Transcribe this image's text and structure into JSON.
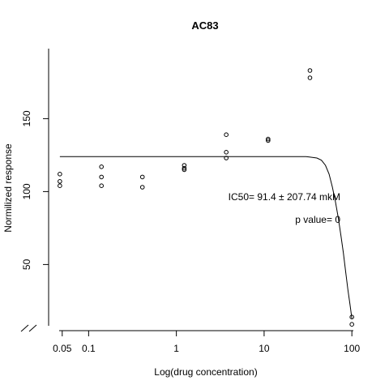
{
  "chart_data": {
    "type": "scatter",
    "title": "AC83",
    "xlabel": "Log(drug concentration)",
    "ylabel": "Normilized response",
    "x_scale": "log",
    "x_ticks": [
      0.05,
      0.1,
      1,
      10,
      100
    ],
    "x_tick_labels": [
      "0.05",
      "0.1",
      "1",
      "10",
      "100"
    ],
    "y_ticks": [
      50,
      100,
      150
    ],
    "y_tick_labels": [
      "50",
      "100",
      "150"
    ],
    "xlim": [
      0.035,
      140
    ],
    "ylim": [
      8,
      198
    ],
    "grid": false,
    "points": [
      {
        "x": 0.047,
        "y": 112
      },
      {
        "x": 0.047,
        "y": 107
      },
      {
        "x": 0.047,
        "y": 104
      },
      {
        "x": 0.14,
        "y": 117
      },
      {
        "x": 0.14,
        "y": 110
      },
      {
        "x": 0.14,
        "y": 104
      },
      {
        "x": 0.41,
        "y": 110
      },
      {
        "x": 0.41,
        "y": 103
      },
      {
        "x": 1.23,
        "y": 118
      },
      {
        "x": 1.23,
        "y": 116
      },
      {
        "x": 1.23,
        "y": 115
      },
      {
        "x": 3.7,
        "y": 139
      },
      {
        "x": 3.7,
        "y": 127
      },
      {
        "x": 3.7,
        "y": 123
      },
      {
        "x": 11.1,
        "y": 136
      },
      {
        "x": 11.1,
        "y": 135
      },
      {
        "x": 33.3,
        "y": 183
      },
      {
        "x": 33.3,
        "y": 178
      },
      {
        "x": 100,
        "y": 14
      },
      {
        "x": 100,
        "y": 9
      }
    ],
    "fit_curve": {
      "x": [
        0.047,
        0.1,
        1,
        10,
        30,
        40,
        45,
        50,
        55,
        60,
        65,
        70,
        75,
        80,
        85,
        90,
        95,
        100
      ],
      "y": [
        124,
        124,
        124,
        124,
        124,
        123,
        121.5,
        118,
        112,
        103,
        93,
        82,
        70,
        58,
        45,
        33,
        23,
        13
      ]
    },
    "annotations": [
      "IC50= 91.4 ± 207.74 mkM",
      "p value= 0"
    ]
  }
}
